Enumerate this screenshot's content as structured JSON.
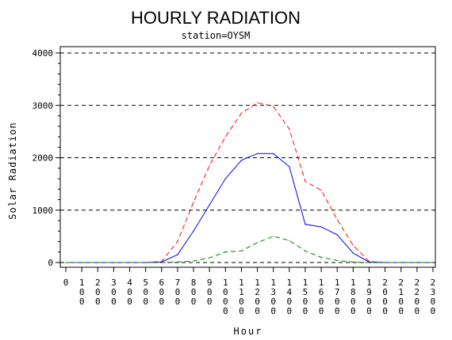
{
  "chart_data": {
    "type": "line",
    "title": "HOURLY RADIATION",
    "subtitle": "station=OYSM",
    "xlabel": "Hour",
    "ylabel": "Solar Radiation",
    "xlim": [
      0,
      2300
    ],
    "ylim": [
      0,
      4000
    ],
    "yticks": [
      0,
      1000,
      2000,
      3000,
      4000
    ],
    "yticks_labels": [
      "0",
      "1000",
      "2000",
      "3000",
      "4000"
    ],
    "x": [
      0,
      100,
      200,
      300,
      400,
      500,
      600,
      700,
      800,
      900,
      1000,
      1100,
      1200,
      1300,
      1400,
      1500,
      1600,
      1700,
      1800,
      1900,
      2000,
      2100,
      2200,
      2300
    ],
    "xtick_labels": [
      "0",
      "100",
      "200",
      "300",
      "400",
      "500",
      "600",
      "700",
      "800",
      "900",
      "1000",
      "1100",
      "1200",
      "1300",
      "1400",
      "1500",
      "1600",
      "1700",
      "1800",
      "1900",
      "2000",
      "2100",
      "2200",
      "2300"
    ],
    "grid": "horizontal-dashed",
    "legend": "none",
    "series": [
      {
        "color": "#ff0000",
        "style": "dashed",
        "values": [
          0,
          0,
          0,
          0,
          0,
          0,
          20,
          400,
          1150,
          1850,
          2400,
          2850,
          3050,
          2980,
          2550,
          1550,
          1380,
          820,
          330,
          20,
          0,
          0,
          0,
          0
        ]
      },
      {
        "color": "#0000ff",
        "style": "solid",
        "values": [
          0,
          0,
          0,
          0,
          0,
          0,
          10,
          150,
          600,
          1100,
          1600,
          1950,
          2080,
          2080,
          1830,
          730,
          680,
          530,
          180,
          10,
          0,
          0,
          0,
          0
        ]
      },
      {
        "color": "#008000",
        "style": "dashed",
        "values": [
          0,
          0,
          0,
          0,
          0,
          0,
          0,
          10,
          30,
          90,
          200,
          220,
          380,
          500,
          420,
          220,
          100,
          40,
          10,
          0,
          0,
          0,
          0,
          0
        ]
      }
    ]
  }
}
